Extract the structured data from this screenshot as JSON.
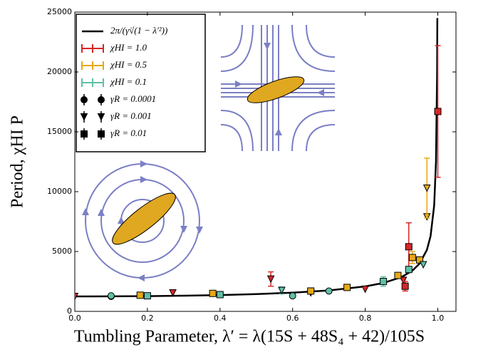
{
  "chart_data": {
    "type": "scatter",
    "x_label": "Tumbling Parameter, λ′ = λ(15S + 48S₄ + 42)/105S",
    "y_label": "Period, χHI P",
    "xlim": [
      0,
      1.05
    ],
    "ylim": [
      0,
      25000
    ],
    "xticks": [
      {
        "value": 0,
        "label": "0.0"
      },
      0.2,
      0.4,
      0.6,
      0.8,
      {
        "value": 1,
        "label": "1.0"
      }
    ],
    "yticks": [
      0,
      5000,
      10000,
      15000,
      20000,
      25000
    ],
    "curve": {
      "name": "2π/(γ̇√(1 − λ′²))",
      "color": "#000000",
      "x": [
        0,
        0.1,
        0.2,
        0.3,
        0.4,
        0.5,
        0.6,
        0.7,
        0.8,
        0.85,
        0.9,
        0.93,
        0.95,
        0.97,
        0.98,
        0.99,
        0.995,
        0.998,
        0.9987
      ],
      "values": [
        1250,
        1256,
        1276,
        1310,
        1364,
        1443,
        1563,
        1750,
        2083,
        2373,
        2868,
        3401,
        4003,
        5142,
        6282,
        8861,
        12510,
        19770,
        24500
      ]
    },
    "series": [
      {
        "name": "χHI = 1.0",
        "color": "#d62728",
        "x": [
          0.0,
          0.1,
          0.27,
          0.54,
          0.65,
          0.8,
          0.905,
          0.91,
          0.92,
          1.0
        ],
        "values": [
          1250,
          1250,
          1550,
          2700,
          1550,
          1850,
          2600,
          2100,
          5400,
          16700
        ],
        "errors": [
          null,
          null,
          null,
          600,
          null,
          null,
          null,
          400,
          2000,
          5500
        ],
        "markers": [
          "triangle",
          "circle",
          "triangle",
          "triangle",
          "triangle",
          "triangle",
          "triangle",
          "square",
          "square",
          "square"
        ]
      },
      {
        "name": "χHI = 0.5",
        "color": "#e6a817",
        "x": [
          0.18,
          0.38,
          0.65,
          0.75,
          0.89,
          0.93,
          0.95,
          0.97,
          0.97
        ],
        "values": [
          1350,
          1500,
          1700,
          2000,
          3000,
          4500,
          4300,
          7900,
          10300
        ],
        "errors": [
          null,
          null,
          null,
          null,
          null,
          500,
          null,
          null,
          2500
        ],
        "markers": [
          "square",
          "square",
          "square",
          "square",
          "square",
          "square",
          "square",
          "triangle",
          "triangle"
        ]
      },
      {
        "name": "χHI = 0.1",
        "color": "#5fc0a8",
        "x": [
          0.1,
          0.2,
          0.4,
          0.57,
          0.6,
          0.7,
          0.85,
          0.92,
          0.96
        ],
        "values": [
          1300,
          1300,
          1400,
          1750,
          1300,
          1700,
          2500,
          3500,
          3900
        ],
        "errors": [
          null,
          null,
          null,
          300,
          null,
          null,
          400,
          null,
          null
        ],
        "markers": [
          "circle",
          "square",
          "square",
          "triangle",
          "circle",
          "circle",
          "square",
          "square",
          "triangle"
        ]
      }
    ],
    "marker_legend": [
      {
        "name": "γR = 0.0001",
        "marker": "circle"
      },
      {
        "name": "γR = 0.001",
        "marker": "triangle"
      },
      {
        "name": "γR = 0.01",
        "marker": "square"
      }
    ]
  }
}
